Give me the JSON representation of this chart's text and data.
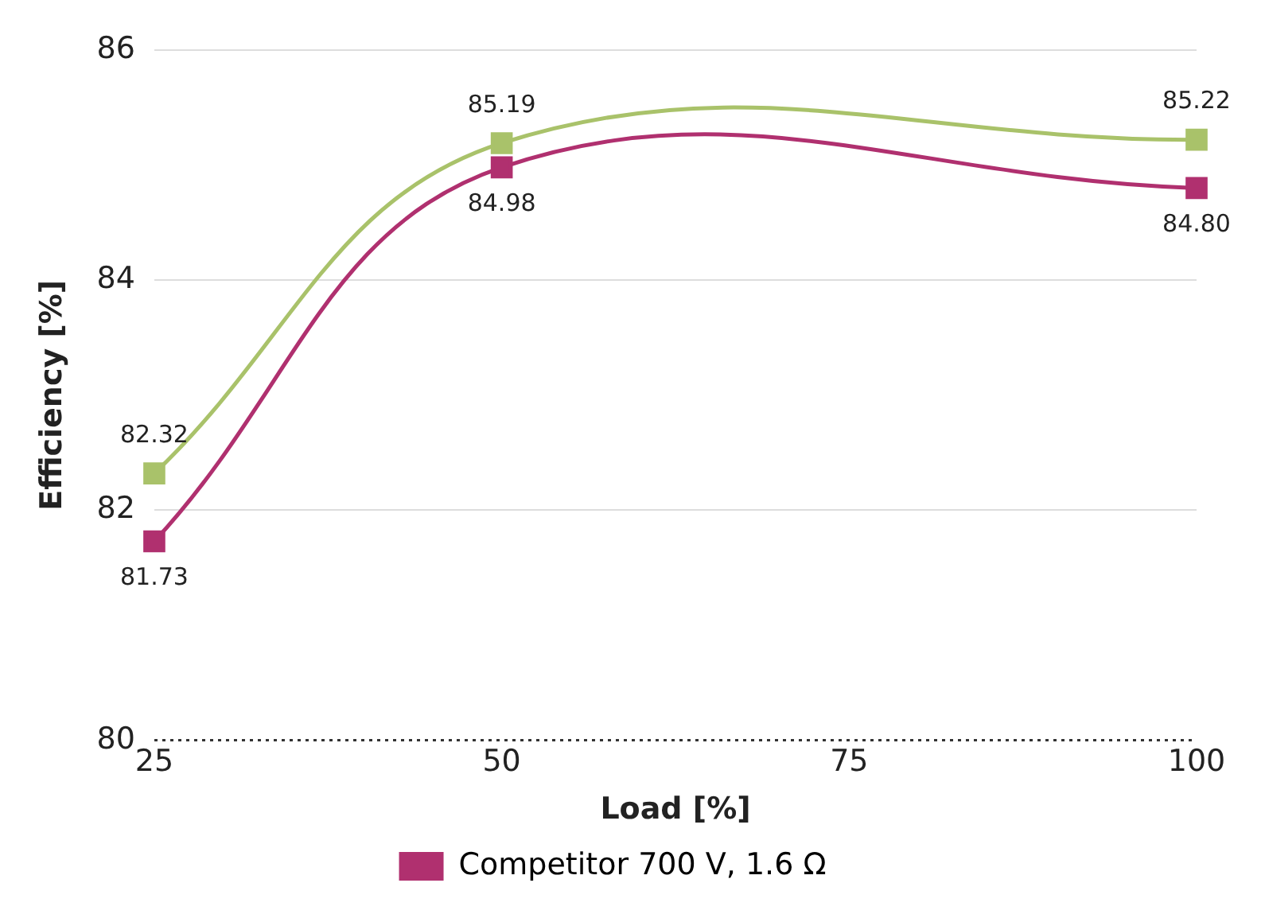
{
  "chart_data": {
    "type": "line",
    "xlabel": "Load [%]",
    "ylabel": "Efficiency [%]",
    "x": [
      25,
      50,
      100
    ],
    "series": [
      {
        "color": "#a9c26a",
        "values": [
          82.32,
          85.19,
          85.22
        ],
        "value_labels": [
          "82.32",
          "85.19",
          "85.22"
        ]
      },
      {
        "name": "Competitor 700 V, 1.6 Ω",
        "color": "#b0306f",
        "values": [
          81.73,
          84.98,
          84.8
        ],
        "value_labels": [
          "81.73",
          "84.98",
          "84.80"
        ]
      }
    ],
    "xlim": [
      25,
      100
    ],
    "xticks": [
      25,
      50,
      75,
      100
    ],
    "ylim": [
      80,
      86
    ],
    "yticks": [
      80,
      82,
      84,
      86
    ],
    "grid": "y",
    "legend": "bottom",
    "marker": "square",
    "line_style": "solid"
  }
}
